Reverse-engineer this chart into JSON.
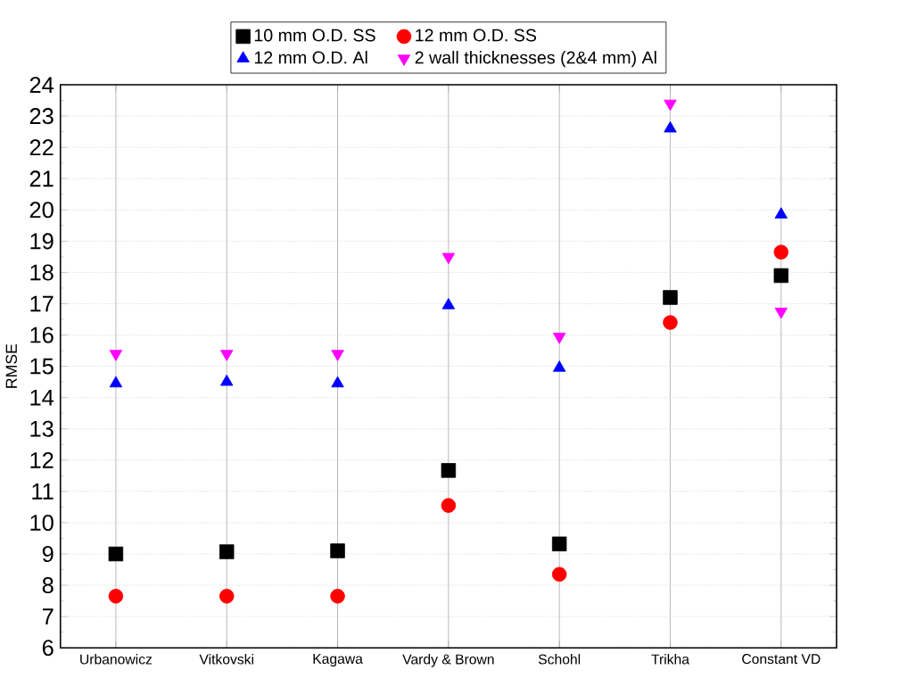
{
  "chart_data": {
    "type": "scatter",
    "ylabel": "RMSE",
    "categories": [
      "Urbanowicz",
      "Vitkovski",
      "Kagawa",
      "Vardy & Brown",
      "Schohl",
      "Trikha",
      "Constant VD"
    ],
    "series": [
      {
        "name": "10 mm O.D. SS",
        "color": "#000000",
        "marker": "square",
        "values": [
          9.0,
          9.07,
          9.1,
          11.67,
          9.32,
          17.2,
          17.9
        ]
      },
      {
        "name": "12 mm O.D. SS",
        "color": "#ff0000",
        "marker": "circle",
        "values": [
          7.65,
          7.65,
          7.65,
          10.55,
          8.35,
          16.4,
          18.65
        ]
      },
      {
        "name": "12 mm O.D. Al",
        "color": "#0000ff",
        "marker": "triangle",
        "values": [
          14.45,
          14.5,
          14.45,
          16.95,
          14.95,
          22.6,
          19.85
        ]
      },
      {
        "name": "2 wall thicknesses (2&4 mm) Al",
        "color": "#ff00ff",
        "marker": "triangle-down",
        "values": [
          15.4,
          15.4,
          15.4,
          18.5,
          15.95,
          23.4,
          16.75
        ]
      }
    ],
    "ylim": [
      6,
      24
    ],
    "yticks": [
      6,
      7,
      8,
      9,
      10,
      11,
      12,
      13,
      14,
      15,
      16,
      17,
      18,
      19,
      20,
      21,
      22,
      23,
      24
    ],
    "grid": true,
    "legend": "top"
  }
}
